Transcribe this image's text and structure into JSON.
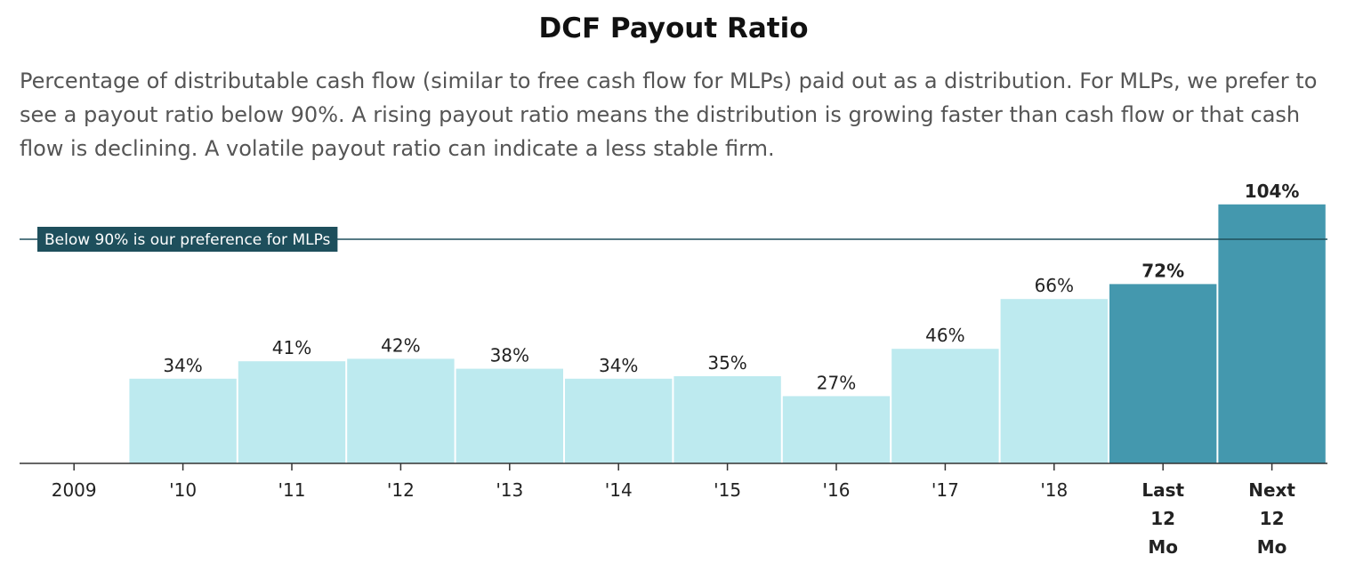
{
  "chart_data": {
    "type": "bar",
    "title": "DCF Payout Ratio",
    "subtitle": "Percentage of distributable cash flow (similar to free cash flow for MLPs) paid out as a distribution. For MLPs, we prefer to see a payout ratio below 90%. A rising payout ratio means the distribution is growing faster than cash flow or that cash flow is declining. A volatile payout ratio can indicate a less stable firm.",
    "categories": [
      "2009",
      "'10",
      "'11",
      "'12",
      "'13",
      "'14",
      "'15",
      "'16",
      "'17",
      "'18",
      "Last 12 Mo",
      "Next 12 Mo"
    ],
    "values": [
      null,
      34,
      41,
      42,
      38,
      34,
      35,
      27,
      46,
      66,
      72,
      104
    ],
    "value_labels": [
      "",
      "34%",
      "41%",
      "42%",
      "38%",
      "34%",
      "35%",
      "27%",
      "46%",
      "66%",
      "72%",
      "104%"
    ],
    "highlighted": [
      false,
      false,
      false,
      false,
      false,
      false,
      false,
      false,
      false,
      false,
      true,
      true
    ],
    "ylim": [
      0,
      110
    ],
    "reference_line": {
      "value": 90,
      "label": "Below 90% is our preference for MLPs"
    },
    "colors": {
      "bar": "#bdeaef",
      "highlight": "#4498ae",
      "reference": "#1e4f5c",
      "axis": "#333333"
    },
    "grid": false,
    "legend": "none"
  }
}
